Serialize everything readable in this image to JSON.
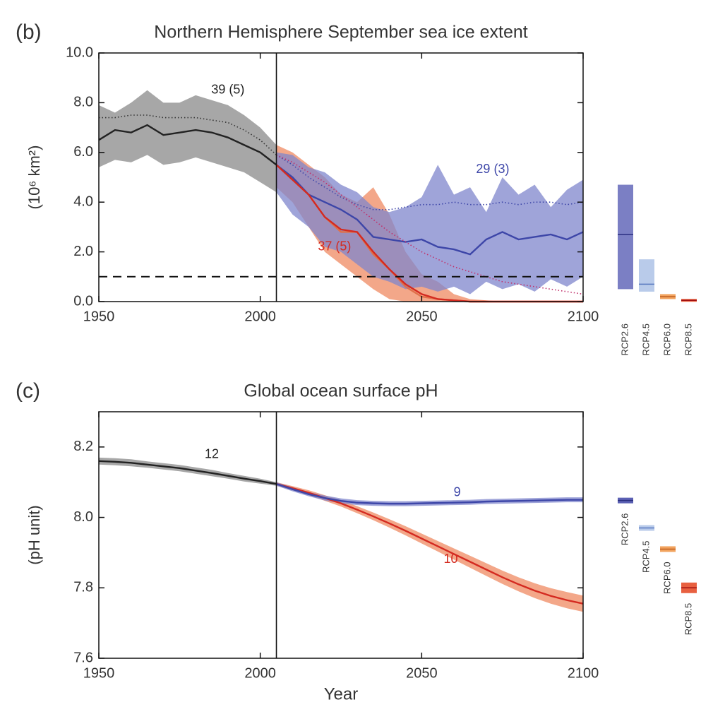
{
  "chart_data": [
    {
      "type": "line",
      "panel": "(b)",
      "title": "Northern Hemisphere September sea ice extent",
      "ylabel": "(10⁶ km²)",
      "xlim": [
        1950,
        2100
      ],
      "xticks": [
        1950,
        2000,
        2050,
        2100
      ],
      "ylim": [
        0,
        10
      ],
      "yticks": [
        {
          "value": 0,
          "label": "0.0"
        },
        {
          "value": 2,
          "label": "2.0"
        },
        {
          "value": 4,
          "label": "4.0"
        },
        {
          "value": 6,
          "label": "6.0"
        },
        {
          "value": 8,
          "label": "8.0"
        },
        {
          "value": 10,
          "label": "10.0"
        }
      ],
      "vline": 2005,
      "hline": 1,
      "series": [
        {
          "color": "#222222",
          "band_color": "#8a8a8a",
          "x": [
            1950,
            1955,
            1960,
            1965,
            1970,
            1975,
            1980,
            1985,
            1990,
            1995,
            2000,
            2005
          ],
          "values": [
            6.5,
            6.9,
            6.8,
            7.1,
            6.7,
            6.8,
            6.9,
            6.8,
            6.6,
            6.3,
            6.0,
            5.5
          ],
          "low": [
            5.4,
            5.7,
            5.6,
            5.9,
            5.5,
            5.6,
            5.8,
            5.6,
            5.4,
            5.2,
            4.8,
            4.4
          ],
          "high": [
            7.9,
            7.6,
            8.0,
            8.5,
            8.0,
            8.0,
            8.3,
            8.1,
            7.9,
            7.5,
            7.0,
            6.3
          ]
        },
        {
          "color": "#e0704a",
          "band_color": "#ef8a62",
          "x": [
            2005,
            2010,
            2015,
            2020,
            2025,
            2030,
            2035,
            2040,
            2045,
            2050,
            2055,
            2060,
            2065,
            2070,
            2075,
            2080,
            2085,
            2090,
            2095,
            2100
          ],
          "values": [
            5.5,
            4.9,
            4.3,
            3.4,
            2.8,
            2.8,
            1.9,
            1.3,
            0.6,
            0.2,
            0.1,
            0.05,
            0,
            0,
            0,
            0,
            0,
            0,
            0,
            0
          ],
          "low": [
            4.6,
            4.0,
            3.0,
            2.0,
            1.5,
            1.0,
            0.5,
            0.1,
            0,
            0,
            0,
            0,
            0,
            0,
            0,
            0,
            0,
            0,
            0,
            0
          ],
          "high": [
            6.3,
            6.0,
            5.5,
            5.0,
            4.3,
            4.0,
            4.6,
            3.5,
            2.0,
            1.1,
            0.8,
            0.3,
            0.1,
            0.05,
            0,
            0,
            0,
            0,
            0,
            0
          ]
        },
        {
          "color": "#3d46a8",
          "band_color": "#7f85cc",
          "x": [
            2005,
            2010,
            2015,
            2020,
            2025,
            2030,
            2035,
            2040,
            2045,
            2050,
            2055,
            2060,
            2065,
            2070,
            2075,
            2080,
            2085,
            2090,
            2095,
            2100
          ],
          "values": [
            5.5,
            5.0,
            4.3,
            4.0,
            3.7,
            3.3,
            2.6,
            2.5,
            2.4,
            2.5,
            2.2,
            2.1,
            1.9,
            2.5,
            2.8,
            2.5,
            2.6,
            2.7,
            2.5,
            2.8
          ],
          "low": [
            4.4,
            3.5,
            3.0,
            2.2,
            2.0,
            1.5,
            1.0,
            0.8,
            0.5,
            0.6,
            0.4,
            0.6,
            0.3,
            0.8,
            0.5,
            0.7,
            0.4,
            0.9,
            0.6,
            1.0
          ],
          "high": [
            6.0,
            5.9,
            5.4,
            5.2,
            4.7,
            4.4,
            3.8,
            3.6,
            3.8,
            4.2,
            5.5,
            4.3,
            4.6,
            3.6,
            5.0,
            4.3,
            4.7,
            3.8,
            4.5,
            4.9
          ]
        },
        {
          "color": "#d42a20",
          "x": [
            2005,
            2010,
            2015,
            2020,
            2025,
            2030,
            2035,
            2040,
            2045,
            2050,
            2055,
            2060,
            2065,
            2070,
            2075,
            2080,
            2085,
            2090,
            2095,
            2100
          ],
          "values": [
            5.5,
            4.9,
            4.3,
            3.4,
            2.9,
            2.8,
            2.0,
            1.3,
            0.7,
            0.3,
            0.1,
            0.05,
            0,
            0,
            0,
            0,
            0,
            0,
            0,
            0
          ]
        },
        {
          "color": "#333333",
          "style": "dotted",
          "x": [
            1950,
            1955,
            1960,
            1965,
            1970,
            1975,
            1980,
            1985,
            1990,
            1995,
            2000,
            2005
          ],
          "values": [
            7.4,
            7.4,
            7.5,
            7.5,
            7.4,
            7.4,
            7.4,
            7.3,
            7.2,
            6.9,
            6.5,
            5.9
          ]
        },
        {
          "color": "#3d46a8",
          "style": "dotted",
          "x": [
            2005,
            2010,
            2015,
            2020,
            2025,
            2030,
            2035,
            2040,
            2045,
            2050,
            2055,
            2060,
            2065,
            2070,
            2075,
            2080,
            2085,
            2090,
            2095,
            2100
          ],
          "values": [
            5.9,
            5.5,
            5.0,
            4.6,
            4.2,
            3.9,
            3.7,
            3.7,
            3.8,
            3.9,
            3.9,
            4.0,
            3.9,
            3.9,
            4.0,
            3.9,
            4.0,
            4.0,
            3.9,
            4.0
          ]
        },
        {
          "color": "#c0306a",
          "style": "dotted",
          "x": [
            2005,
            2010,
            2015,
            2020,
            2025,
            2030,
            2035,
            2040,
            2045,
            2050,
            2055,
            2060,
            2065,
            2070,
            2075,
            2080,
            2085,
            2090,
            2095,
            2100
          ],
          "values": [
            5.9,
            5.6,
            5.2,
            4.8,
            4.3,
            3.8,
            3.3,
            2.8,
            2.4,
            2.0,
            1.7,
            1.4,
            1.2,
            1.0,
            0.8,
            0.7,
            0.6,
            0.5,
            0.4,
            0.3
          ]
        }
      ],
      "annotations": [
        {
          "text": "39 (5)",
          "color": "#222222"
        },
        {
          "text": "29 (3)",
          "color": "#3d46a8"
        },
        {
          "text": "37 (5)",
          "color": "#d42a20"
        }
      ],
      "ranges": [
        {
          "label": "RCP2.6",
          "color": "#7b7fc4",
          "line": "#2a2f80",
          "low": 0.5,
          "high": 4.7,
          "mean": 2.7
        },
        {
          "label": "RCP4.5",
          "color": "#b9cbea",
          "line": "#5a7ac0",
          "low": 0.4,
          "high": 1.7,
          "mean": 0.7
        },
        {
          "label": "RCP6.0",
          "color": "#f2a35e",
          "line": "#c06020",
          "low": 0.1,
          "high": 0.3,
          "mean": 0.2
        },
        {
          "label": "RCP8.5",
          "color": "#e86040",
          "line": "#a01010",
          "low": 0,
          "high": 0.1,
          "mean": 0.05
        }
      ]
    },
    {
      "type": "line",
      "panel": "(c)",
      "title": "Global ocean surface pH",
      "ylabel": "(pH unit)",
      "xlabel": "Year",
      "xlim": [
        1950,
        2100
      ],
      "xticks": [
        1950,
        2000,
        2050,
        2100
      ],
      "ylim": [
        7.6,
        8.3
      ],
      "yticks": [
        7.6,
        7.8,
        {
          "value": 8,
          "label": "8.0"
        },
        8.2
      ],
      "vline": 2005,
      "series": [
        {
          "color": "#222222",
          "band_color": "#8a8a8a",
          "x": [
            1950,
            1955,
            1960,
            1965,
            1970,
            1975,
            1980,
            1985,
            1990,
            1995,
            2000,
            2005
          ],
          "values": [
            8.16,
            8.158,
            8.155,
            8.15,
            8.145,
            8.14,
            8.133,
            8.126,
            8.118,
            8.11,
            8.103,
            8.095
          ],
          "low": [
            8.15,
            8.148,
            8.145,
            8.141,
            8.136,
            8.131,
            8.124,
            8.117,
            8.11,
            8.102,
            8.096,
            8.09
          ],
          "high": [
            8.17,
            8.168,
            8.165,
            8.159,
            8.154,
            8.149,
            8.142,
            8.135,
            8.126,
            8.118,
            8.11,
            8.1
          ]
        },
        {
          "color": "#d42a20",
          "band_color": "#ef8a62",
          "x": [
            2005,
            2010,
            2015,
            2020,
            2025,
            2030,
            2035,
            2040,
            2045,
            2050,
            2055,
            2060,
            2065,
            2070,
            2075,
            2080,
            2085,
            2090,
            2095,
            2100
          ],
          "values": [
            8.095,
            8.083,
            8.07,
            8.055,
            8.04,
            8.022,
            8.003,
            7.983,
            7.962,
            7.94,
            7.918,
            7.896,
            7.874,
            7.852,
            7.83,
            7.81,
            7.792,
            7.777,
            7.765,
            7.755
          ],
          "low": [
            8.09,
            8.077,
            8.063,
            8.047,
            8.031,
            8.012,
            7.992,
            7.971,
            7.949,
            7.926,
            7.903,
            7.88,
            7.857,
            7.834,
            7.811,
            7.79,
            7.771,
            7.755,
            7.742,
            7.732
          ],
          "high": [
            8.1,
            8.089,
            8.077,
            8.063,
            8.049,
            8.032,
            8.014,
            7.995,
            7.975,
            7.954,
            7.933,
            7.912,
            7.891,
            7.87,
            7.849,
            7.83,
            7.813,
            7.799,
            7.788,
            7.778
          ]
        },
        {
          "color": "#3d46a8",
          "band_color": "#7f85cc",
          "x": [
            2005,
            2010,
            2015,
            2020,
            2025,
            2030,
            2035,
            2040,
            2045,
            2050,
            2055,
            2060,
            2065,
            2070,
            2075,
            2080,
            2085,
            2090,
            2095,
            2100
          ],
          "values": [
            8.095,
            8.08,
            8.066,
            8.055,
            8.047,
            8.042,
            8.04,
            8.039,
            8.039,
            8.04,
            8.041,
            8.042,
            8.043,
            8.045,
            8.046,
            8.047,
            8.048,
            8.049,
            8.05,
            8.05
          ],
          "low": [
            8.09,
            8.074,
            8.06,
            8.048,
            8.04,
            8.035,
            8.033,
            8.032,
            8.032,
            8.033,
            8.034,
            8.035,
            8.036,
            8.038,
            8.039,
            8.04,
            8.041,
            8.042,
            8.043,
            8.043
          ],
          "high": [
            8.1,
            8.086,
            8.072,
            8.062,
            8.054,
            8.049,
            8.047,
            8.046,
            8.046,
            8.047,
            8.048,
            8.049,
            8.05,
            8.052,
            8.053,
            8.054,
            8.055,
            8.056,
            8.057,
            8.057
          ]
        }
      ],
      "annotations": [
        {
          "text": "12",
          "color": "#222222"
        },
        {
          "text": "9",
          "color": "#3d46a8"
        },
        {
          "text": "10",
          "color": "#d42a20"
        }
      ],
      "ranges": [
        {
          "label": "RCP2.6",
          "color": "#5c61b4",
          "line": "#2a2f80",
          "low": 8.04,
          "high": 8.056,
          "mean": 8.048
        },
        {
          "label": "RCP4.5",
          "color": "#b9cbea",
          "line": "#5a7ac0",
          "low": 7.962,
          "high": 7.978,
          "mean": 7.97
        },
        {
          "label": "RCP6.0",
          "color": "#f2a35e",
          "line": "#c06020",
          "low": 7.902,
          "high": 7.918,
          "mean": 7.91
        },
        {
          "label": "RCP8.5",
          "color": "#e86040",
          "line": "#a01010",
          "low": 7.785,
          "high": 7.815,
          "mean": 7.8
        }
      ]
    }
  ]
}
